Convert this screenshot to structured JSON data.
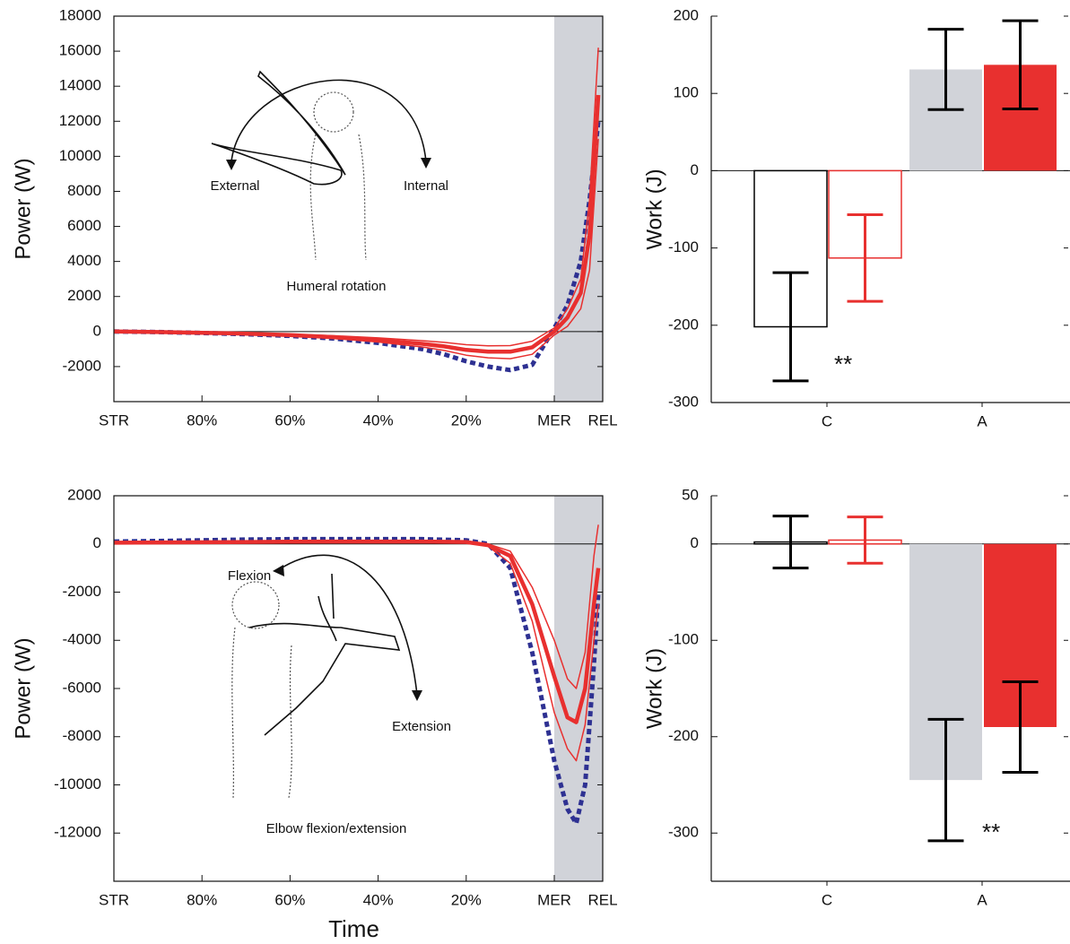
{
  "chart_data": [
    {
      "type": "line",
      "y_label": "Power (W)",
      "xlim": [
        0,
        111
      ],
      "ylim": [
        -4000,
        18000
      ],
      "xticks": [
        {
          "value": 0,
          "label": "STR"
        },
        {
          "value": 20,
          "label": "80%"
        },
        {
          "value": 40,
          "label": "60%"
        },
        {
          "value": 60,
          "label": "40%"
        },
        {
          "value": 80,
          "label": "20%"
        },
        {
          "value": 100,
          "label": "MER"
        },
        {
          "value": 111,
          "label": "REL"
        }
      ],
      "yticks": [
        -2000,
        0,
        2000,
        4000,
        6000,
        8000,
        10000,
        12000,
        14000,
        16000,
        18000
      ],
      "shaded_x": [
        100,
        111
      ],
      "shade_color": "#d1d3d9",
      "zero_line": true,
      "annotations": [
        "External",
        "Internal",
        "Humeral rotation"
      ],
      "x": [
        0,
        10,
        20,
        30,
        40,
        50,
        60,
        70,
        75,
        80,
        85,
        90,
        95,
        100,
        103,
        106,
        108,
        110
      ],
      "series": [
        {
          "color": "#2e3192",
          "line_style": "dashed",
          "line_width": 5,
          "values": [
            0,
            -30,
            -80,
            -150,
            -250,
            -400,
            -650,
            -1000,
            -1300,
            -1700,
            -2000,
            -2200,
            -1900,
            200,
            1500,
            4000,
            7500,
            12000
          ]
        },
        {
          "color": "#e8302f",
          "line_style": "solid",
          "line_width": 1.5,
          "values": [
            0,
            -20,
            -50,
            -90,
            -150,
            -240,
            -360,
            -520,
            -620,
            -750,
            -820,
            -800,
            -550,
            200,
            1300,
            3000,
            7500,
            16200
          ]
        },
        {
          "color": "#e8302f",
          "line_style": "solid",
          "line_width": 1.5,
          "values": [
            0,
            -40,
            -90,
            -160,
            -260,
            -400,
            -600,
            -880,
            -1080,
            -1350,
            -1500,
            -1550,
            -1300,
            -200,
            300,
            1300,
            3500,
            11000
          ]
        },
        {
          "color": "#e8302f",
          "line_style": "solid",
          "line_width": 4.5,
          "values": [
            0,
            -30,
            -70,
            -120,
            -200,
            -320,
            -480,
            -700,
            -850,
            -1050,
            -1150,
            -1150,
            -900,
            0,
            800,
            2200,
            5500,
            13500
          ]
        }
      ]
    },
    {
      "type": "bar",
      "y_label": "Work (J)",
      "categories": [
        "C",
        "A"
      ],
      "ylim": [
        -300,
        200
      ],
      "yticks": [
        -300,
        -200,
        -100,
        0,
        100,
        200
      ],
      "zero_line": true,
      "annotations": [
        "**"
      ],
      "series": [
        {
          "colors": [
            "#000000",
            "#d1d3d9"
          ],
          "filled": [
            false,
            true
          ],
          "error_colors": [
            "#000000",
            "#000000"
          ],
          "values": [
            -202,
            131
          ],
          "errors": [
            70,
            52
          ]
        },
        {
          "colors": [
            "#e8302f",
            "#e8302f"
          ],
          "filled": [
            false,
            true
          ],
          "error_colors": [
            "#e8302f",
            "#000000"
          ],
          "values": [
            -113,
            137
          ],
          "errors": [
            56,
            57
          ]
        }
      ]
    },
    {
      "type": "line",
      "y_label": "Power (W)",
      "x_label": "Time",
      "xlim": [
        0,
        111
      ],
      "ylim": [
        -14000,
        2000
      ],
      "xticks": [
        {
          "value": 0,
          "label": "STR"
        },
        {
          "value": 20,
          "label": "80%"
        },
        {
          "value": 40,
          "label": "60%"
        },
        {
          "value": 60,
          "label": "40%"
        },
        {
          "value": 80,
          "label": "20%"
        },
        {
          "value": 100,
          "label": "MER"
        },
        {
          "value": 111,
          "label": "REL"
        }
      ],
      "yticks": [
        -12000,
        -10000,
        -8000,
        -6000,
        -4000,
        -2000,
        0,
        2000
      ],
      "shaded_x": [
        100,
        111
      ],
      "shade_color": "#d1d3d9",
      "zero_line": true,
      "annotations": [
        "Flexion",
        "Extension",
        "Elbow flexion/extension"
      ],
      "x": [
        0,
        10,
        20,
        30,
        40,
        50,
        60,
        70,
        80,
        85,
        90,
        95,
        100,
        103,
        105,
        107,
        109,
        110
      ],
      "series": [
        {
          "color": "#2e3192",
          "line_style": "dashed",
          "line_width": 5,
          "values": [
            100,
            120,
            150,
            180,
            200,
            200,
            200,
            200,
            150,
            0,
            -1000,
            -4500,
            -9000,
            -11000,
            -11600,
            -10000,
            -5000,
            -2000
          ]
        },
        {
          "color": "#e8302f",
          "line_style": "solid",
          "line_width": 1.5,
          "values": [
            50,
            60,
            70,
            80,
            90,
            100,
            100,
            100,
            90,
            0,
            -300,
            -1800,
            -4000,
            -5600,
            -6000,
            -4500,
            -500,
            800
          ]
        },
        {
          "color": "#e8302f",
          "line_style": "solid",
          "line_width": 1.5,
          "values": [
            50,
            60,
            70,
            80,
            90,
            100,
            100,
            100,
            60,
            -100,
            -800,
            -3200,
            -7000,
            -8500,
            -9000,
            -7500,
            -4000,
            -2500
          ]
        },
        {
          "color": "#e8302f",
          "line_style": "solid",
          "line_width": 4.5,
          "values": [
            50,
            60,
            70,
            80,
            90,
            100,
            100,
            100,
            80,
            -50,
            -500,
            -2500,
            -5500,
            -7200,
            -7400,
            -6000,
            -2500,
            -1000
          ]
        }
      ]
    },
    {
      "type": "bar",
      "y_label": "Work (J)",
      "categories": [
        "C",
        "A"
      ],
      "ylim": [
        -350,
        50
      ],
      "yticks": [
        -300,
        -200,
        -100,
        0,
        50
      ],
      "zero_line": true,
      "annotations": [
        "**"
      ],
      "series": [
        {
          "colors": [
            "#000000",
            "#d1d3d9"
          ],
          "filled": [
            false,
            true
          ],
          "error_colors": [
            "#000000",
            "#000000"
          ],
          "values": [
            2,
            -245
          ],
          "errors": [
            27,
            63
          ]
        },
        {
          "colors": [
            "#e8302f",
            "#e8302f"
          ],
          "filled": [
            false,
            true
          ],
          "error_colors": [
            "#e8302f",
            "#000000"
          ],
          "values": [
            4,
            -190
          ],
          "errors": [
            24,
            47
          ]
        }
      ]
    }
  ]
}
